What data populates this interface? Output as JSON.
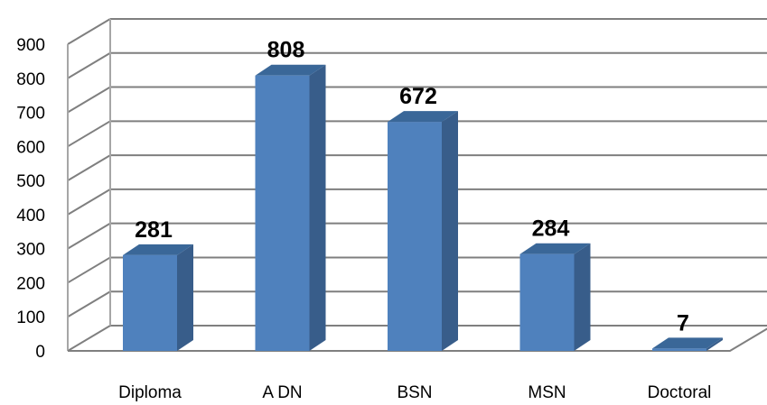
{
  "chart_data": {
    "type": "bar",
    "title": "",
    "xlabel": "",
    "ylabel": "",
    "categories": [
      "Diploma",
      "A DN",
      "BSN",
      "MSN",
      "Doctoral"
    ],
    "values": [
      281,
      808,
      672,
      284,
      7
    ],
    "data_labels": [
      "281",
      "808",
      "672",
      "284",
      "7"
    ],
    "ylim": [
      0,
      900
    ],
    "yticks": [
      0,
      100,
      200,
      300,
      400,
      500,
      600,
      700,
      800,
      900
    ],
    "ytick_labels": [
      "0",
      "100",
      "200",
      "300",
      "400",
      "500",
      "600",
      "700",
      "800",
      "900"
    ],
    "grid": true,
    "legend": "none",
    "style": "3d-column",
    "colors": {
      "bar_front": "#4F81BD",
      "bar_side": "#385D8A",
      "bar_top": "#3A6798",
      "grid": "#7F7F7F",
      "wall_grid": "#A6A6A6"
    }
  }
}
